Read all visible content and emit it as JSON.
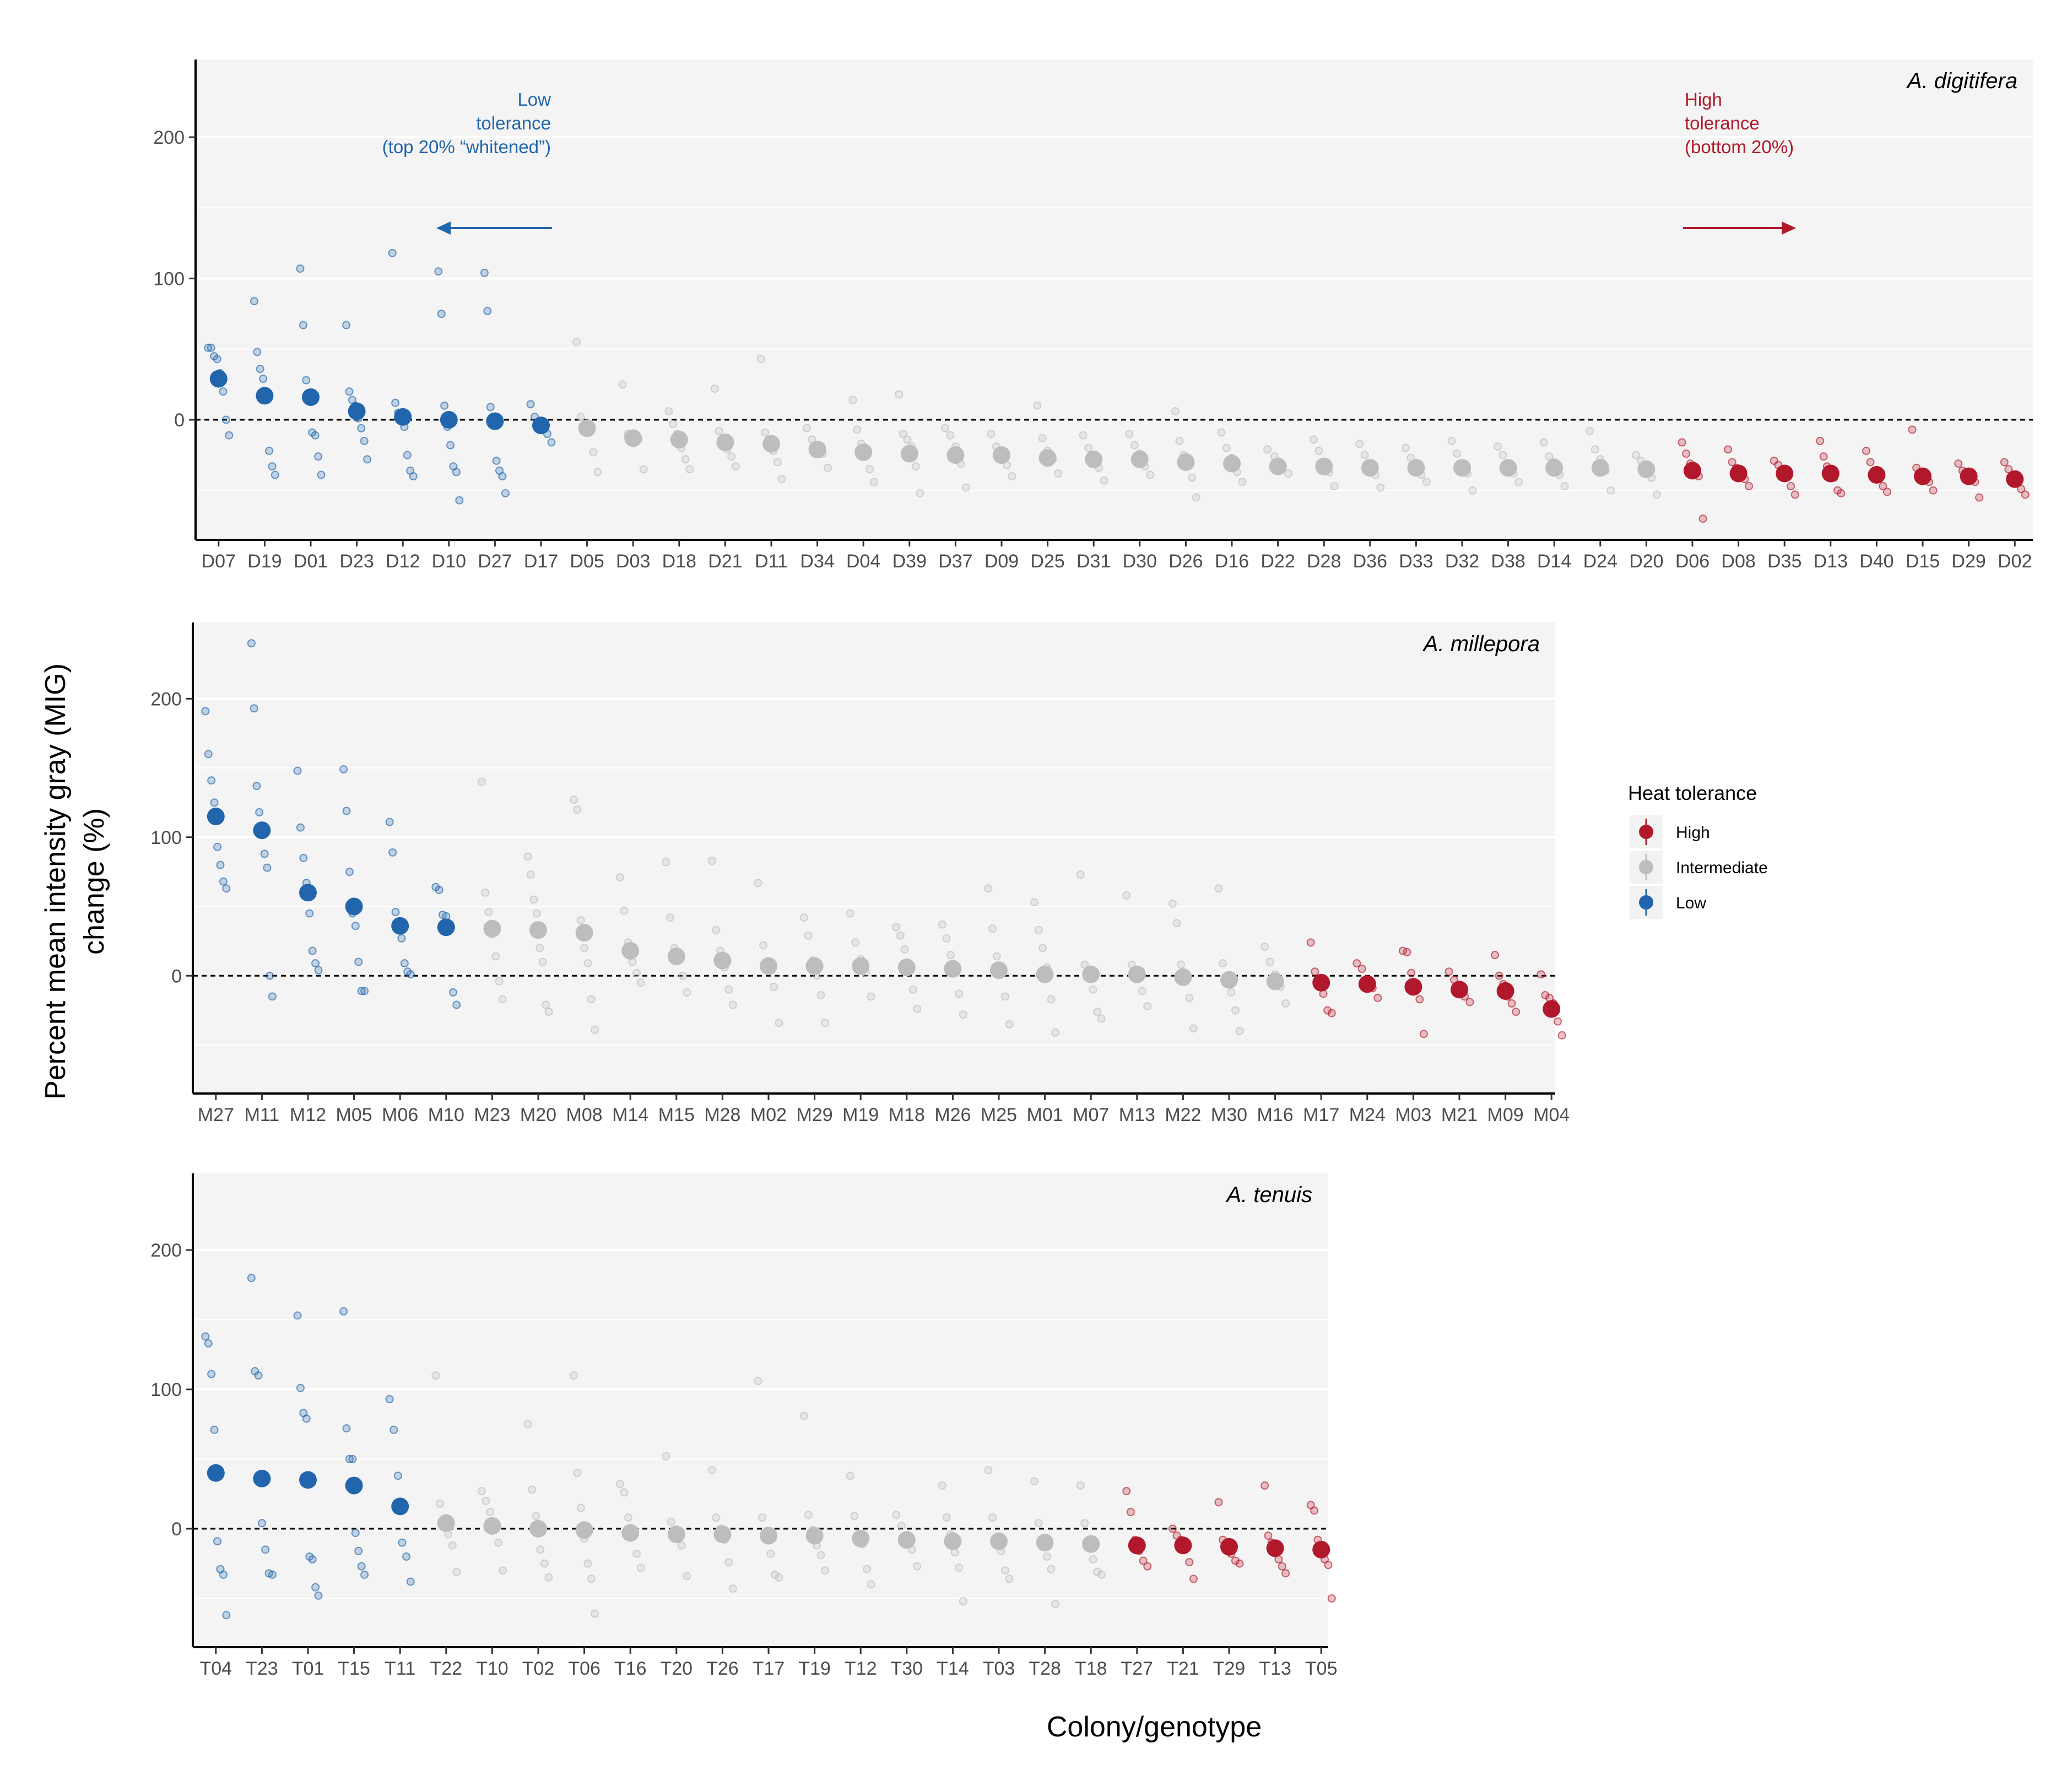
{
  "figure": {
    "ylabel_line1": "Percent mean intensity gray (MIG)",
    "ylabel_line2": "change (%)",
    "xlabel": "Colony/genotype"
  },
  "legend": {
    "title": "Heat tolerance",
    "items": [
      {
        "label": "High",
        "color": "#b2182b"
      },
      {
        "label": "Intermediate",
        "color": "#bdbdbd"
      },
      {
        "label": "Low",
        "color": "#2166ac"
      }
    ]
  },
  "colors": {
    "High": "#b2182b",
    "Intermediate": "#bdbdbd",
    "Low": "#2166ac",
    "panel_bg": "#f4f4f4",
    "grid": "#ffffff",
    "axis": "#000000",
    "tick_text": "#4d4d4d"
  },
  "annotations": {
    "low_line1": "Low",
    "low_line2": "tolerance",
    "low_line3": "(top 20% “whitened”)",
    "high_line1": "High",
    "high_line2": "tolerance",
    "high_line3": "(bottom 20%)"
  },
  "chart_data": [
    {
      "type": "scatter",
      "title": "A. digitifera",
      "ylim": [
        -85,
        255
      ],
      "yticks": [
        0,
        100,
        200
      ],
      "reference_line": 0,
      "categories": [
        "D07",
        "D19",
        "D01",
        "D23",
        "D12",
        "D10",
        "D27",
        "D17",
        "D05",
        "D03",
        "D18",
        "D21",
        "D11",
        "D34",
        "D04",
        "D39",
        "D37",
        "D09",
        "D25",
        "D31",
        "D30",
        "D26",
        "D16",
        "D22",
        "D28",
        "D36",
        "D33",
        "D32",
        "D38",
        "D14",
        "D24",
        "D20",
        "D06",
        "D08",
        "D35",
        "D13",
        "D40",
        "D15",
        "D29",
        "D02"
      ],
      "means": [
        29,
        17,
        16,
        6,
        2,
        0,
        -1,
        -4,
        -6,
        -13,
        -14,
        -16,
        -17,
        -21,
        -23,
        -24,
        -25,
        -25,
        -27,
        -28,
        -28,
        -30,
        -31,
        -33,
        -33,
        -34,
        -34,
        -34,
        -34,
        -34,
        -34,
        -35,
        -36,
        -38,
        -38,
        -38,
        -39,
        -40,
        -40,
        -42
      ],
      "tolerance": [
        "Low",
        "Low",
        "Low",
        "Low",
        "Low",
        "Low",
        "Low",
        "Low",
        "Intermediate",
        "Intermediate",
        "Intermediate",
        "Intermediate",
        "Intermediate",
        "Intermediate",
        "Intermediate",
        "Intermediate",
        "Intermediate",
        "Intermediate",
        "Intermediate",
        "Intermediate",
        "Intermediate",
        "Intermediate",
        "Intermediate",
        "Intermediate",
        "Intermediate",
        "Intermediate",
        "Intermediate",
        "Intermediate",
        "Intermediate",
        "Intermediate",
        "Intermediate",
        "Intermediate",
        "High",
        "High",
        "High",
        "High",
        "High",
        "High",
        "High",
        "High"
      ],
      "raw_points": [
        [
          51,
          51,
          45,
          43,
          33,
          20,
          0,
          -11
        ],
        [
          84,
          48,
          36,
          29,
          20,
          -22,
          -33,
          -39
        ],
        [
          107,
          67,
          28,
          18,
          -9,
          -11,
          -26,
          -39
        ],
        [
          67,
          20,
          14,
          10,
          1,
          -6,
          -15,
          -28
        ],
        [
          118,
          12,
          5,
          0,
          -5,
          -25,
          -36,
          -40
        ],
        [
          105,
          75,
          10,
          -5,
          -18,
          -33,
          -37,
          -57
        ],
        [
          104,
          77,
          9,
          -1,
          -29,
          -36,
          -40,
          -52
        ],
        [
          11,
          2,
          -3,
          -6,
          -10,
          -16
        ],
        [
          55,
          2,
          -3,
          -8,
          -23,
          -37
        ],
        [
          25,
          -10,
          -12,
          -14,
          -35
        ],
        [
          6,
          -3,
          -10,
          -20,
          -28,
          -35
        ],
        [
          22,
          -8,
          -14,
          -21,
          -26,
          -33
        ],
        [
          43,
          -9,
          -15,
          -22,
          -30,
          -42
        ],
        [
          -6,
          -14,
          -19,
          -24,
          -34
        ],
        [
          14,
          -7,
          -17,
          -24,
          -35,
          -44
        ],
        [
          18,
          -10,
          -14,
          -19,
          -33,
          -52
        ],
        [
          -6,
          -11,
          -19,
          -31,
          -48
        ],
        [
          -10,
          -19,
          -25,
          -32,
          -40
        ],
        [
          10,
          -13,
          -22,
          -28,
          -38
        ],
        [
          -11,
          -20,
          -26,
          -34,
          -43
        ],
        [
          -10,
          -18,
          -24,
          -33,
          -39
        ],
        [
          6,
          -15,
          -25,
          -33,
          -41,
          -55
        ],
        [
          -9,
          -20,
          -27,
          -37,
          -44
        ],
        [
          -21,
          -26,
          -32,
          -38
        ],
        [
          -14,
          -22,
          -30,
          -37,
          -47
        ],
        [
          -17,
          -25,
          -31,
          -39,
          -48
        ],
        [
          -20,
          -27,
          -33,
          -39,
          -44
        ],
        [
          -15,
          -24,
          -31,
          -38,
          -50
        ],
        [
          -19,
          -25,
          -32,
          -38,
          -44
        ],
        [
          -16,
          -26,
          -30,
          -39,
          -47
        ],
        [
          -8,
          -21,
          -28,
          -36,
          -50
        ],
        [
          -25,
          -29,
          -35,
          -41,
          -53
        ],
        [
          -16,
          -24,
          -31,
          -36,
          -40,
          -70
        ],
        [
          -21,
          -30,
          -34,
          -39,
          -42,
          -47
        ],
        [
          -29,
          -32,
          -36,
          -40,
          -47,
          -53
        ],
        [
          -15,
          -26,
          -33,
          -37,
          -41,
          -50,
          -52
        ],
        [
          -22,
          -30,
          -36,
          -42,
          -47,
          -51
        ],
        [
          -7,
          -34,
          -38,
          -41,
          -44,
          -50
        ],
        [
          -31,
          -36,
          -38,
          -41,
          -44,
          -55
        ],
        [
          -30,
          -35,
          -40,
          -44,
          -49,
          -53
        ]
      ]
    },
    {
      "type": "scatter",
      "title": "A. millepora",
      "ylim": [
        -85,
        255
      ],
      "yticks": [
        0,
        100,
        200
      ],
      "reference_line": 0,
      "categories": [
        "M27",
        "M11",
        "M12",
        "M05",
        "M06",
        "M10",
        "M23",
        "M20",
        "M08",
        "M14",
        "M15",
        "M28",
        "M02",
        "M29",
        "M19",
        "M18",
        "M26",
        "M25",
        "M01",
        "M07",
        "M13",
        "M22",
        "M30",
        "M16",
        "M17",
        "M24",
        "M03",
        "M21",
        "M09",
        "M04"
      ],
      "means": [
        115,
        105,
        60,
        50,
        36,
        35,
        34,
        33,
        31,
        18,
        14,
        11,
        7,
        7,
        7,
        6,
        5,
        4,
        1,
        1,
        1,
        -1,
        -3,
        -4,
        -5,
        -6,
        -8,
        -10,
        -11,
        -24
      ],
      "tolerance": [
        "Low",
        "Low",
        "Low",
        "Low",
        "Low",
        "Low",
        "Intermediate",
        "Intermediate",
        "Intermediate",
        "Intermediate",
        "Intermediate",
        "Intermediate",
        "Intermediate",
        "Intermediate",
        "Intermediate",
        "Intermediate",
        "Intermediate",
        "Intermediate",
        "Intermediate",
        "Intermediate",
        "Intermediate",
        "Intermediate",
        "Intermediate",
        "Intermediate",
        "High",
        "High",
        "High",
        "High",
        "High",
        "High"
      ],
      "raw_points": [
        [
          191,
          160,
          141,
          125,
          93,
          80,
          68,
          63
        ],
        [
          240,
          193,
          137,
          118,
          102,
          88,
          78,
          0,
          -15
        ],
        [
          148,
          107,
          85,
          67,
          45,
          18,
          9,
          4
        ],
        [
          149,
          119,
          75,
          45,
          36,
          10,
          -11,
          -11
        ],
        [
          111,
          89,
          46,
          37,
          27,
          9,
          3,
          1
        ],
        [
          64,
          62,
          44,
          43,
          33,
          -12,
          -21
        ],
        [
          140,
          60,
          46,
          30,
          14,
          -4,
          -17
        ],
        [
          86,
          73,
          55,
          45,
          20,
          10,
          -21,
          -26
        ],
        [
          127,
          120,
          40,
          20,
          9,
          -17,
          -39
        ],
        [
          71,
          47,
          24,
          10,
          2,
          -5
        ],
        [
          82,
          42,
          20,
          12,
          0,
          -12
        ],
        [
          83,
          33,
          18,
          6,
          -10,
          -21
        ],
        [
          67,
          22,
          10,
          -8,
          -34
        ],
        [
          42,
          29,
          11,
          0,
          -14,
          -34
        ],
        [
          45,
          24,
          12,
          2,
          -15
        ],
        [
          35,
          29,
          19,
          7,
          -10,
          -24
        ],
        [
          37,
          27,
          15,
          7,
          -13,
          -28
        ],
        [
          63,
          34,
          14,
          3,
          -15,
          -35
        ],
        [
          53,
          33,
          20,
          6,
          -17,
          -41
        ],
        [
          73,
          8,
          0,
          -10,
          -26,
          -31
        ],
        [
          58,
          8,
          2,
          -11,
          -22
        ],
        [
          52,
          38,
          8,
          -4,
          -16,
          -38
        ],
        [
          63,
          9,
          0,
          -12,
          -25,
          -40
        ],
        [
          21,
          10,
          1,
          -8,
          -20
        ],
        [
          24,
          3,
          -6,
          -13,
          -25,
          -27
        ],
        [
          9,
          5,
          -3,
          -9,
          -16
        ],
        [
          18,
          17,
          2,
          -10,
          -17,
          -42
        ],
        [
          3,
          -3,
          -8,
          -15,
          -19
        ],
        [
          15,
          0,
          -6,
          -15,
          -20,
          -26
        ],
        [
          1,
          -14,
          -16,
          -20,
          -33,
          -43
        ]
      ]
    },
    {
      "type": "scatter",
      "title": "A. tenuis",
      "ylim": [
        -85,
        255
      ],
      "yticks": [
        0,
        100,
        200
      ],
      "reference_line": 0,
      "categories": [
        "T04",
        "T23",
        "T01",
        "T15",
        "T11",
        "T22",
        "T10",
        "T02",
        "T06",
        "T16",
        "T20",
        "T26",
        "T17",
        "T19",
        "T12",
        "T30",
        "T14",
        "T03",
        "T28",
        "T18",
        "T27",
        "T21",
        "T29",
        "T13",
        "T05"
      ],
      "means": [
        40,
        36,
        35,
        31,
        16,
        4,
        2,
        0,
        -1,
        -3,
        -4,
        -4,
        -5,
        -5,
        -7,
        -8,
        -9,
        -9,
        -10,
        -11,
        -12,
        -12,
        -13,
        -14,
        -15
      ],
      "tolerance": [
        "Low",
        "Low",
        "Low",
        "Low",
        "Low",
        "Intermediate",
        "Intermediate",
        "Intermediate",
        "Intermediate",
        "Intermediate",
        "Intermediate",
        "Intermediate",
        "Intermediate",
        "Intermediate",
        "Intermediate",
        "Intermediate",
        "Intermediate",
        "Intermediate",
        "Intermediate",
        "Intermediate",
        "High",
        "High",
        "High",
        "High",
        "High"
      ],
      "raw_points": [
        [
          138,
          133,
          111,
          71,
          -9,
          -29,
          -33,
          -62
        ],
        [
          180,
          113,
          110,
          4,
          -15,
          -32,
          -33
        ],
        [
          153,
          101,
          83,
          79,
          -20,
          -22,
          -42,
          -48
        ],
        [
          156,
          72,
          50,
          50,
          -3,
          -16,
          -27,
          -33
        ],
        [
          93,
          71,
          38,
          -10,
          -20,
          -38
        ],
        [
          110,
          18,
          5,
          -4,
          -12,
          -31
        ],
        [
          27,
          20,
          12,
          1,
          -10,
          -30
        ],
        [
          75,
          28,
          9,
          -15,
          -25,
          -35
        ],
        [
          110,
          40,
          15,
          -7,
          -25,
          -36,
          -61
        ],
        [
          32,
          26,
          8,
          -5,
          -18,
          -28
        ],
        [
          52,
          5,
          -3,
          -12,
          -34
        ],
        [
          42,
          8,
          0,
          -8,
          -24,
          -43
        ],
        [
          106,
          8,
          -2,
          -18,
          -33,
          -35
        ],
        [
          81,
          10,
          -1,
          -12,
          -19,
          -30
        ],
        [
          38,
          9,
          -4,
          -11,
          -29,
          -40
        ],
        [
          10,
          2,
          -7,
          -15,
          -27
        ],
        [
          31,
          8,
          -4,
          -17,
          -28,
          -52
        ],
        [
          42,
          8,
          -6,
          -16,
          -30,
          -36
        ],
        [
          34,
          4,
          -10,
          -20,
          -29,
          -54
        ],
        [
          31,
          4,
          -12,
          -22,
          -31,
          -33
        ],
        [
          27,
          12,
          -8,
          -16,
          -23,
          -27
        ],
        [
          0,
          -5,
          -8,
          -15,
          -24,
          -36
        ],
        [
          19,
          -8,
          -11,
          -18,
          -23,
          -25
        ],
        [
          31,
          -5,
          -10,
          -16,
          -22,
          -27,
          -32
        ],
        [
          17,
          13,
          -8,
          -14,
          -22,
          -26,
          -50
        ]
      ]
    }
  ]
}
